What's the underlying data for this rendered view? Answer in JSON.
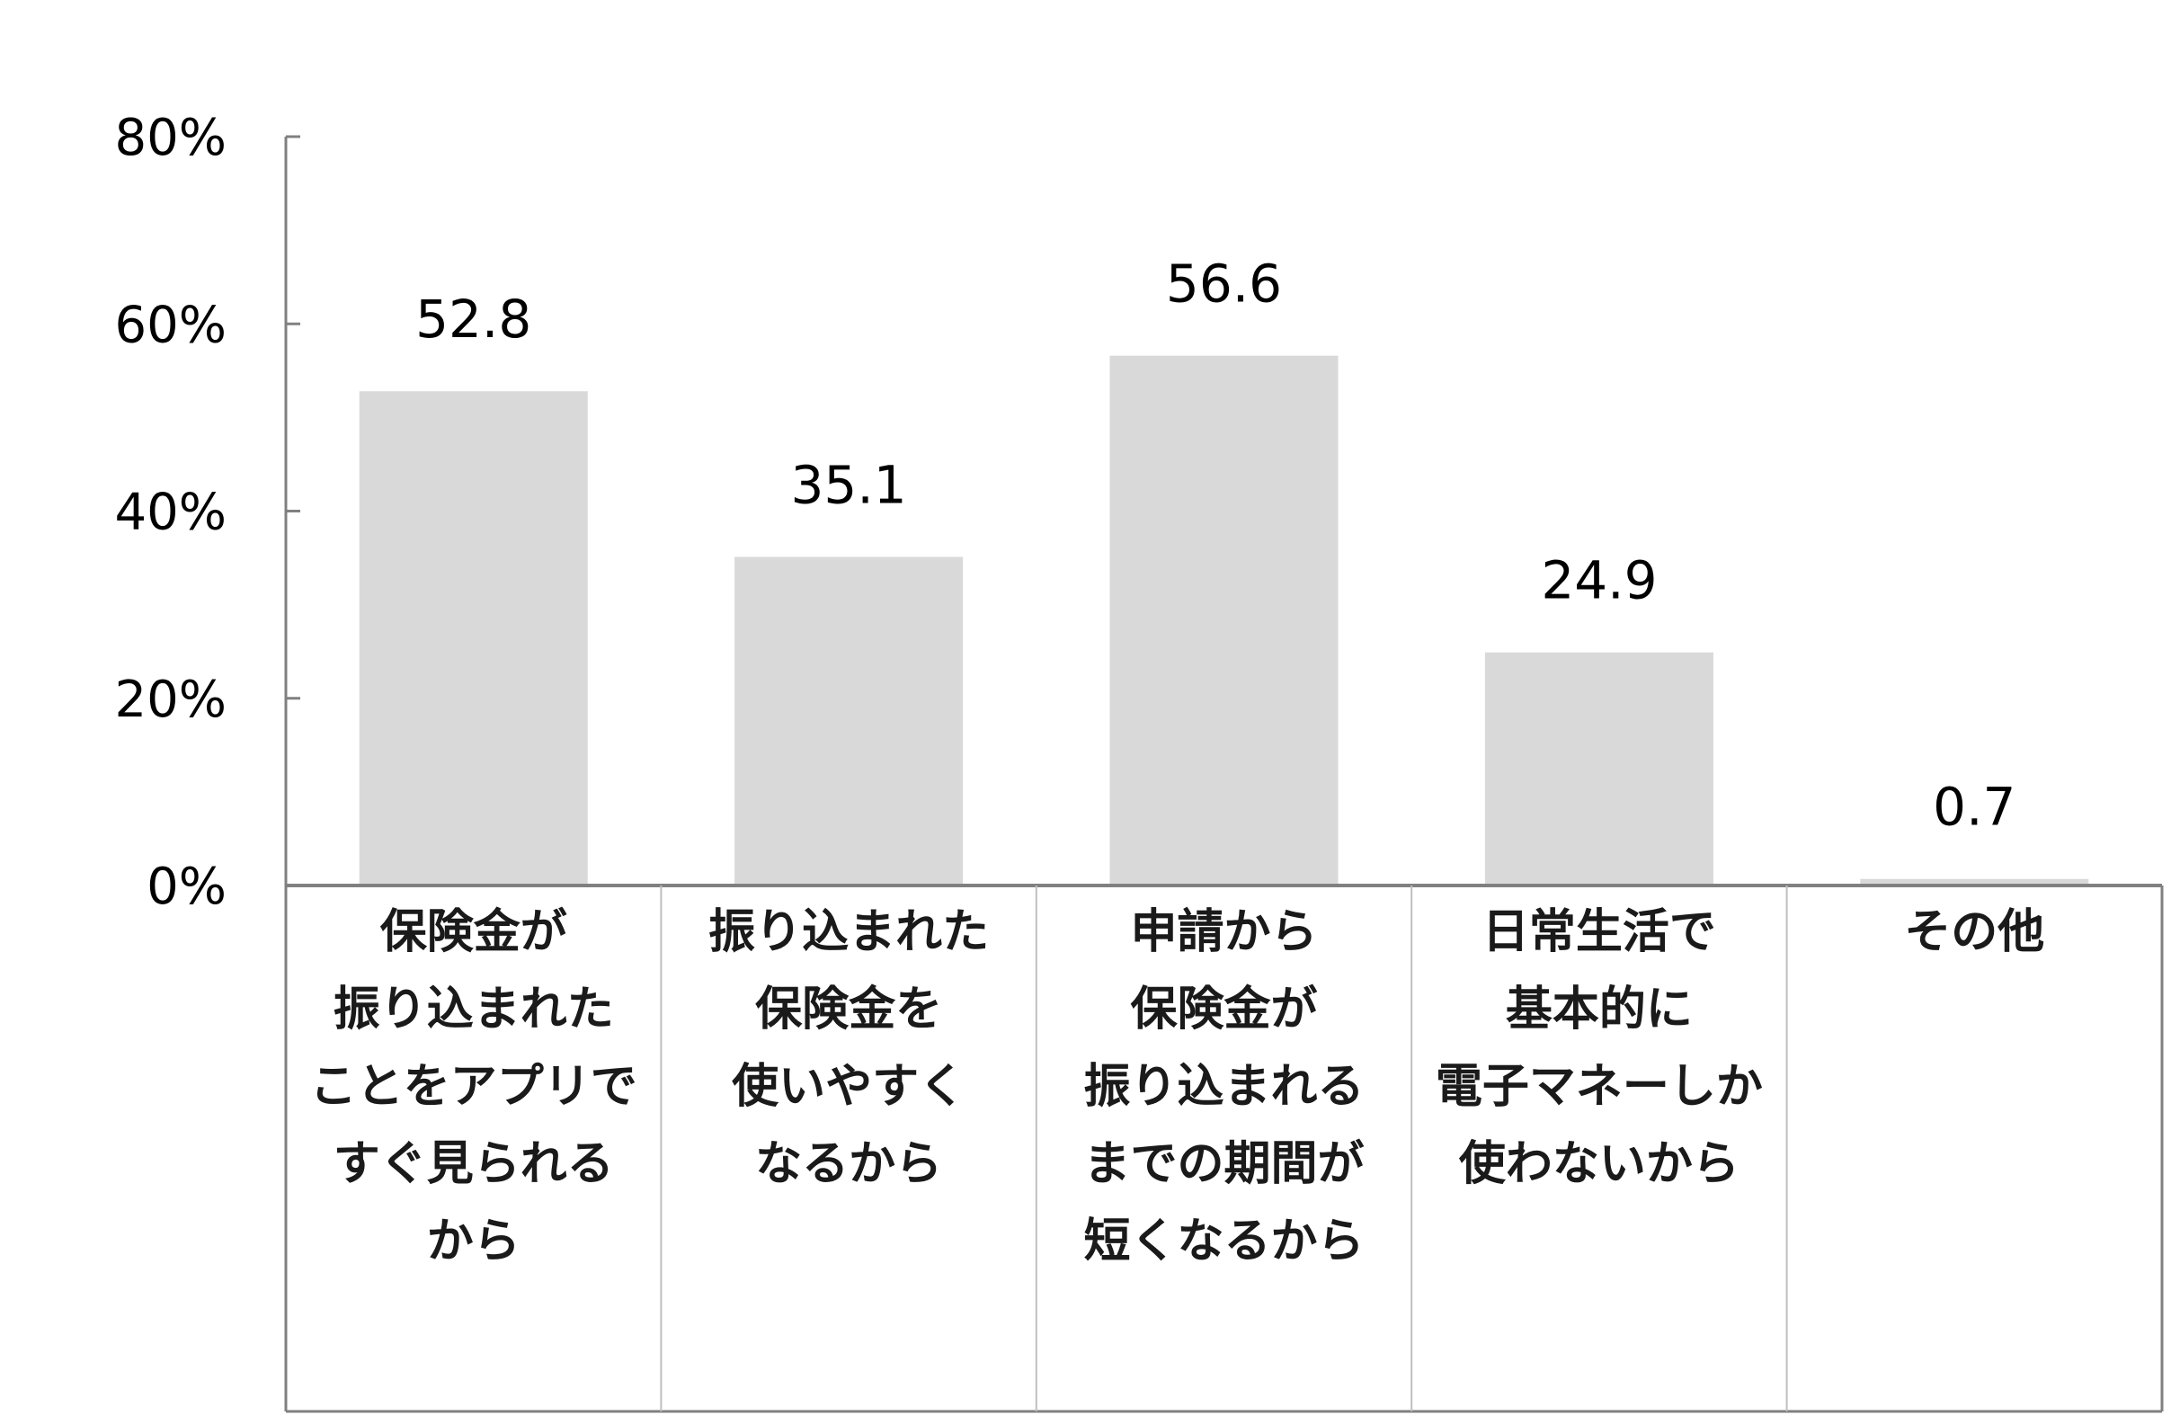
{
  "chart_data": {
    "type": "bar",
    "categories": [
      [
        "保険金が",
        "振り込まれた",
        "ことをアプリで",
        "すぐ見られる",
        "から"
      ],
      [
        "振り込まれた",
        "保険金を",
        "使いやすく",
        "なるから"
      ],
      [
        "申請から",
        "保険金が",
        "振り込まれる",
        "までの期間が",
        "短くなるから"
      ],
      [
        "日常生活で",
        "基本的に",
        "電子マネーしか",
        "使わないから"
      ],
      [
        "その他"
      ]
    ],
    "values": [
      52.8,
      35.1,
      56.6,
      24.9,
      0.7
    ],
    "value_labels": [
      "52.8",
      "35.1",
      "56.6",
      "24.9",
      "0.7"
    ],
    "ylim": [
      0,
      80
    ],
    "yticks": [
      0,
      20,
      40,
      60,
      80
    ],
    "ytick_labels": [
      "0%",
      "20%",
      "40%",
      "60%",
      "80%"
    ],
    "title": "",
    "xlabel": "",
    "ylabel": "",
    "grid": false,
    "bar_color": "#d9d9d9",
    "axis_color": "#808080",
    "table_line_color": "#bfbfbf"
  }
}
